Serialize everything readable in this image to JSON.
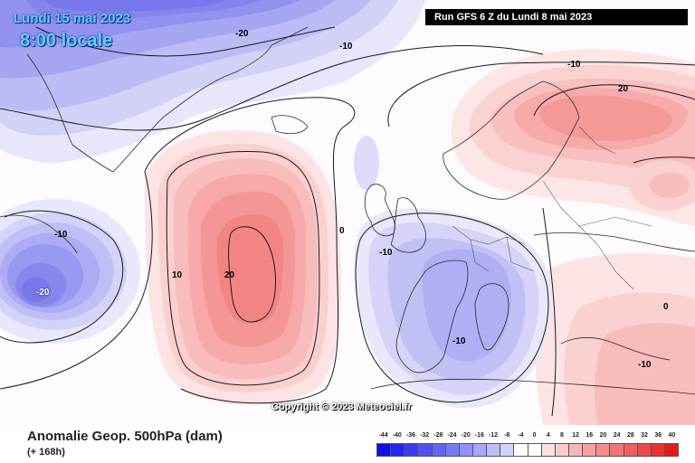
{
  "header": {
    "valid_date": "Lundi 15 mai 2023",
    "valid_time": "8:00 locale",
    "run": "Run GFS 6 Z du Lundi 8 mai 2023"
  },
  "map": {
    "contour_labels": [
      "-20",
      "-10",
      "-10",
      "20",
      "-10",
      "10",
      "20",
      "0",
      "-10",
      "-20",
      "-10",
      "0",
      "-10"
    ],
    "copyright": "Copyright © 2023 Meteociel.fr"
  },
  "footer": {
    "title": "Anomalie Geop. 500hPa (dam)",
    "lead": "(+ 168h)"
  },
  "legend": {
    "ticks": [
      "-44",
      "-40",
      "-36",
      "-32",
      "-28",
      "-24",
      "-20",
      "-16",
      "-12",
      "-8",
      "-4",
      "0",
      "4",
      "8",
      "12",
      "16",
      "20",
      "24",
      "28",
      "32",
      "36",
      "40"
    ],
    "colors": [
      "#1010e8",
      "#2626ee",
      "#3a3af0",
      "#5050f2",
      "#6464f4",
      "#7a7af6",
      "#9090f8",
      "#a6a6fa",
      "#bcbcfc",
      "#d2d2fd",
      "#ffffff",
      "#ffffff",
      "#fde0e0",
      "#fbcccc",
      "#f9b6b6",
      "#f7a0a0",
      "#f58a8a",
      "#f37474",
      "#f15e5e",
      "#ef4848",
      "#ed3030",
      "#e81818"
    ]
  }
}
